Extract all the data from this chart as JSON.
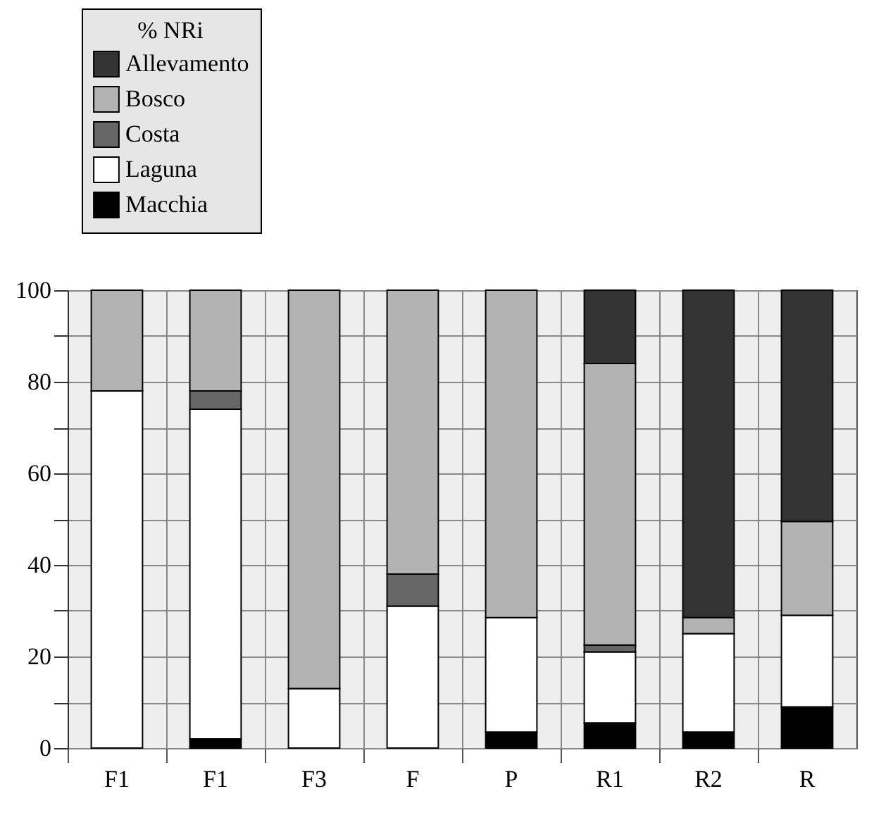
{
  "chart_data": {
    "type": "bar",
    "stacked": true,
    "categories": [
      "F1",
      "F1",
      "F3",
      "F",
      "P",
      "R1",
      "R2",
      "R"
    ],
    "legend_title": "% NRi",
    "legend": "top left",
    "grid": true,
    "ylim": [
      0,
      100
    ],
    "yticks": [
      0,
      {
        "value": 10,
        "label": null
      },
      20,
      {
        "value": 30,
        "label": null
      },
      40,
      {
        "value": 50,
        "label": null
      },
      60,
      {
        "value": 70,
        "label": null
      },
      80,
      {
        "value": 90,
        "label": null
      },
      100
    ],
    "series": [
      {
        "name": "Macchia",
        "color": "#000000",
        "values": [
          null,
          2,
          null,
          null,
          3.5,
          5.5,
          3.5,
          9
        ]
      },
      {
        "name": "Laguna",
        "color": "#ffffff",
        "values": [
          78,
          72,
          13,
          31,
          25,
          15.5,
          21.5,
          20
        ]
      },
      {
        "name": "Costa",
        "color": "#666666",
        "values": [
          null,
          4,
          null,
          7,
          null,
          1.5,
          null,
          null
        ]
      },
      {
        "name": "Bosco",
        "color": "#b3b3b3",
        "values": [
          22,
          22,
          87,
          62,
          71.5,
          61.5,
          3.5,
          20.5
        ]
      },
      {
        "name": "Allevamento",
        "color": "#333333",
        "values": [
          null,
          null,
          null,
          null,
          null,
          16,
          71.5,
          50.5
        ]
      }
    ]
  }
}
